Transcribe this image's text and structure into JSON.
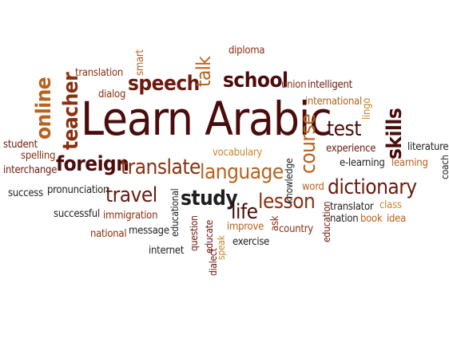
{
  "colors": {
    "dark_maroon": "#4a0c0c",
    "maroon": "#6b1a0e",
    "rust": "#8a3010",
    "orange_brown": "#b8621c",
    "gold": "#c7892e",
    "charcoal": "#1f1f1f"
  },
  "words": [
    {
      "id": "learn-arabic",
      "text": "Learn Arabic"
    },
    {
      "id": "speech",
      "text": "speech"
    },
    {
      "id": "school",
      "text": "school"
    },
    {
      "id": "talk",
      "text": "talk"
    },
    {
      "id": "teacher",
      "text": "teacher"
    },
    {
      "id": "online",
      "text": "online"
    },
    {
      "id": "foreign",
      "text": "foreign"
    },
    {
      "id": "translate",
      "text": "translate"
    },
    {
      "id": "language",
      "text": "language"
    },
    {
      "id": "travel",
      "text": "travel"
    },
    {
      "id": "study",
      "text": "study"
    },
    {
      "id": "life",
      "text": "life"
    },
    {
      "id": "lesson",
      "text": "lesson"
    },
    {
      "id": "course",
      "text": "course"
    },
    {
      "id": "test",
      "text": "test"
    },
    {
      "id": "skills",
      "text": "skills"
    },
    {
      "id": "dictionary",
      "text": "dictionary"
    },
    {
      "id": "diploma",
      "text": "diploma"
    },
    {
      "id": "smart",
      "text": "smart"
    },
    {
      "id": "translation",
      "text": "translation"
    },
    {
      "id": "dialog",
      "text": "dialog"
    },
    {
      "id": "union",
      "text": "union"
    },
    {
      "id": "intelligent",
      "text": "intelligent"
    },
    {
      "id": "international",
      "text": "international"
    },
    {
      "id": "lingo",
      "text": "lingo"
    },
    {
      "id": "student",
      "text": "student"
    },
    {
      "id": "spelling",
      "text": "spelling"
    },
    {
      "id": "interchange",
      "text": "interchange"
    },
    {
      "id": "vocabulary",
      "text": "vocabulary"
    },
    {
      "id": "experience",
      "text": "experience"
    },
    {
      "id": "literature",
      "text": "literature"
    },
    {
      "id": "e-learning",
      "text": "e-learning"
    },
    {
      "id": "learning",
      "text": "learning"
    },
    {
      "id": "coach",
      "text": "coach"
    },
    {
      "id": "success",
      "text": "success"
    },
    {
      "id": "pronunciation",
      "text": "pronunciation"
    },
    {
      "id": "knowledge",
      "text": "knowledge"
    },
    {
      "id": "word",
      "text": "word"
    },
    {
      "id": "successful",
      "text": "successful"
    },
    {
      "id": "immigration",
      "text": "immigration"
    },
    {
      "id": "educational",
      "text": "educational"
    },
    {
      "id": "ask",
      "text": "ask"
    },
    {
      "id": "translator",
      "text": "translator"
    },
    {
      "id": "class",
      "text": "class"
    },
    {
      "id": "nation",
      "text": "nation"
    },
    {
      "id": "book",
      "text": "book"
    },
    {
      "id": "idea",
      "text": "idea"
    },
    {
      "id": "national",
      "text": "national"
    },
    {
      "id": "message",
      "text": "message"
    },
    {
      "id": "question",
      "text": "question"
    },
    {
      "id": "educate",
      "text": "educate"
    },
    {
      "id": "improve",
      "text": "improve"
    },
    {
      "id": "country",
      "text": "country"
    },
    {
      "id": "education",
      "text": "education"
    },
    {
      "id": "exercise",
      "text": "exercise"
    },
    {
      "id": "speak",
      "text": "speak"
    },
    {
      "id": "internet",
      "text": "internet"
    },
    {
      "id": "dialect",
      "text": "dialect"
    }
  ]
}
